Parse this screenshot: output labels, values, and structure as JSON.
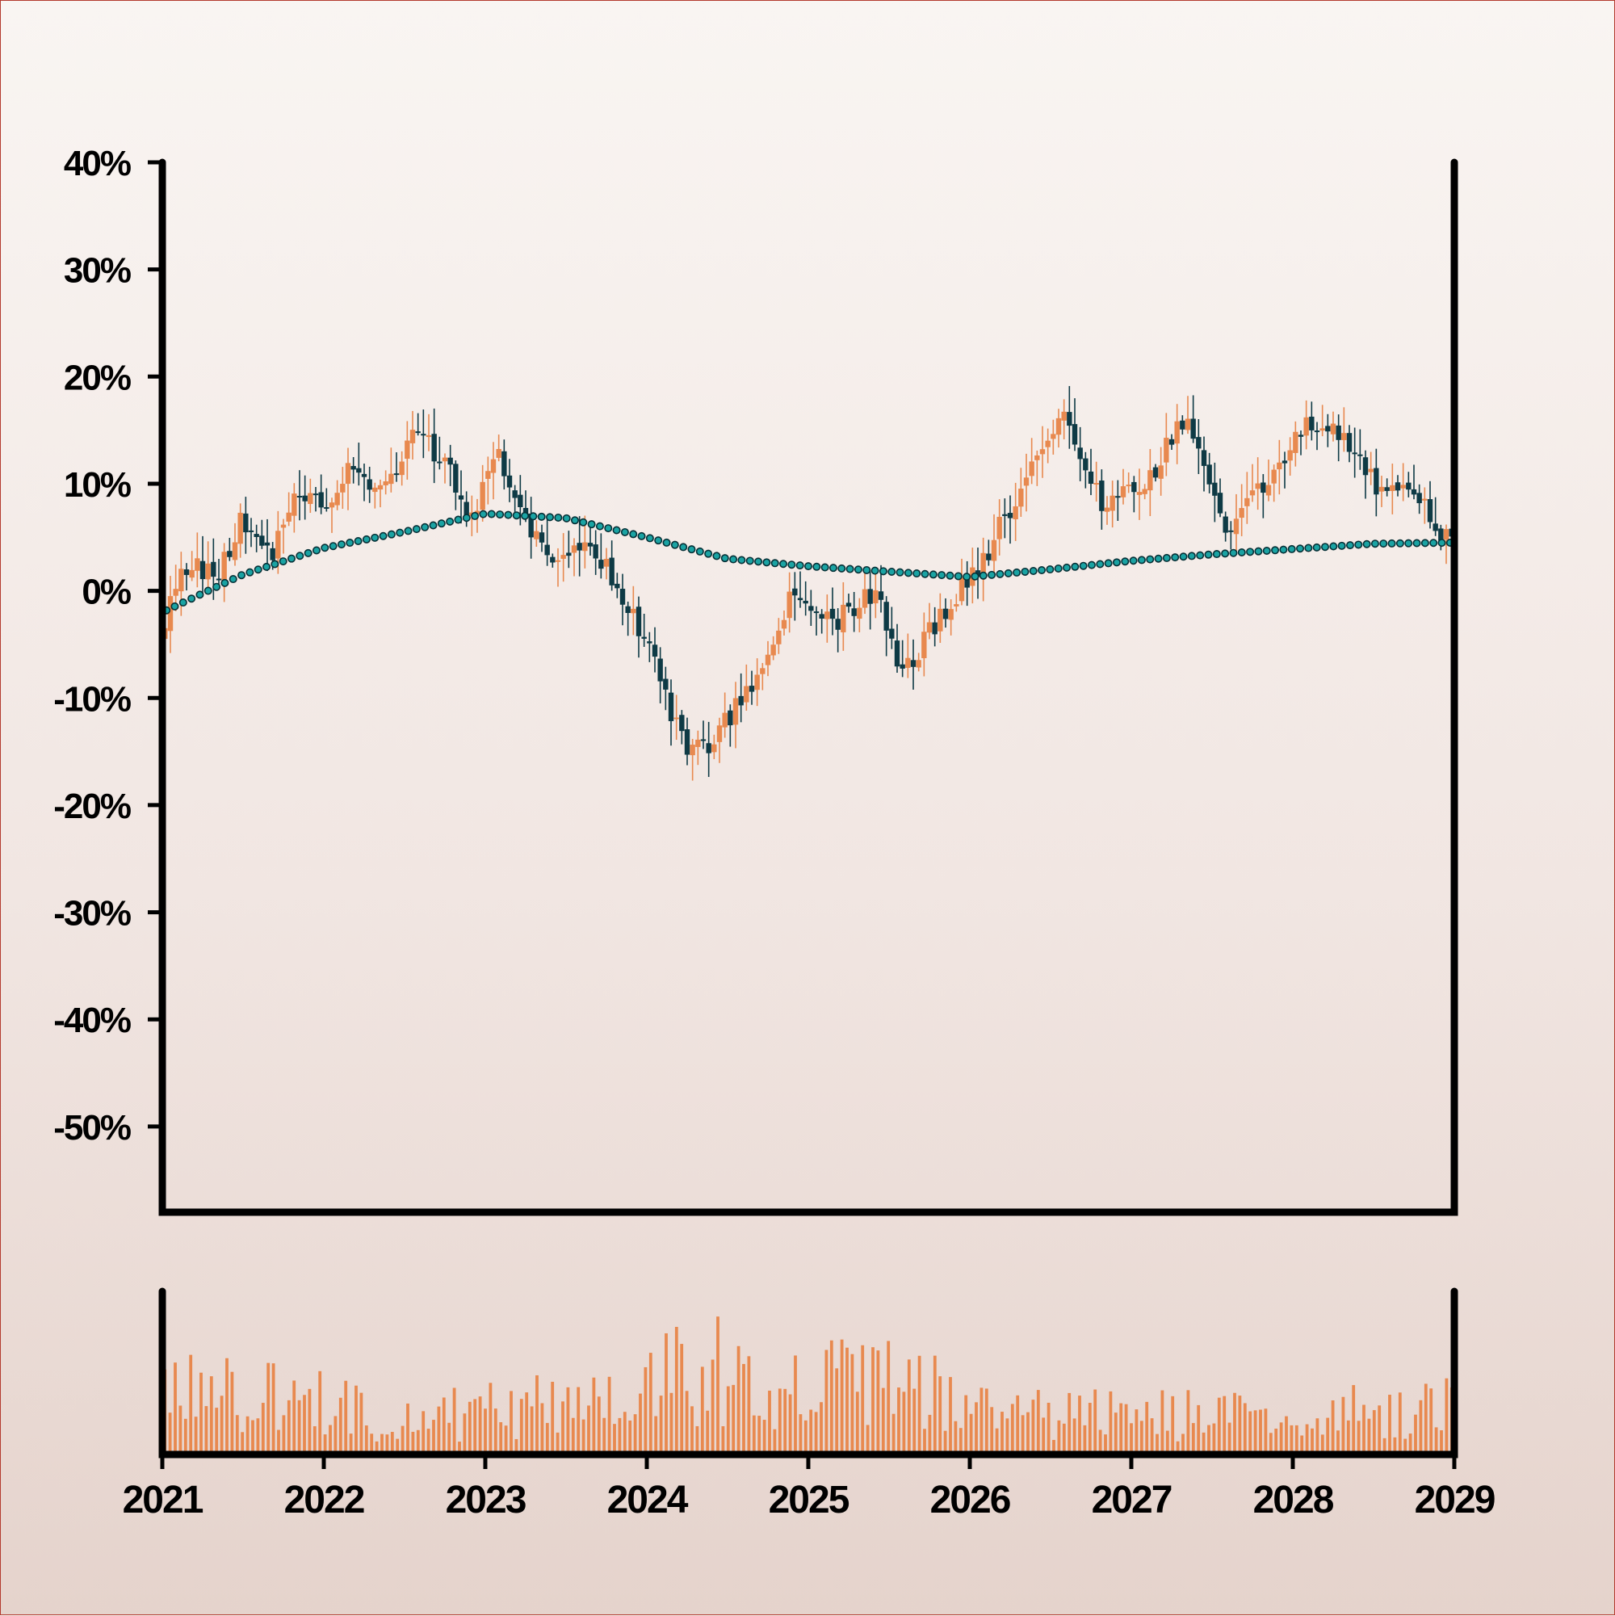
{
  "chart_data": {
    "type": "candlestick",
    "title": "",
    "xlabel": "",
    "ylabel": "",
    "x_axis": {
      "type": "date",
      "range": [
        "2021-01-01",
        "2029-01-01"
      ],
      "tick_labels": [
        "2021",
        "2022",
        "2023",
        "2024",
        "2025",
        "2026",
        "2027",
        "2028",
        "2029"
      ]
    },
    "y_axis": {
      "unit": "%",
      "range": [
        -58,
        40
      ],
      "tick_values": [
        40,
        30,
        20,
        10,
        0,
        -10,
        -20,
        -30,
        -40,
        -50
      ],
      "tick_labels": [
        "40%",
        "30%",
        "20%",
        "10%",
        "0%",
        "-10%",
        "-20%",
        "-30%",
        "-40%",
        "-50%"
      ]
    },
    "grid": false,
    "legend": "none",
    "colors": {
      "up": "#e8894f",
      "down": "#0e3a45",
      "moving_average": "#1aa3a3",
      "volume": "#e8894f",
      "axis": "#000000"
    },
    "series": [
      {
        "type": "candlestick",
        "close_path": [
          {
            "x": "2021-01-01",
            "y": -3
          },
          {
            "x": "2021-03-01",
            "y": 3
          },
          {
            "x": "2021-05-01",
            "y": 1
          },
          {
            "x": "2021-07-01",
            "y": 7
          },
          {
            "x": "2021-09-01",
            "y": 3
          },
          {
            "x": "2021-11-01",
            "y": 10
          },
          {
            "x": "2022-01-01",
            "y": 8
          },
          {
            "x": "2022-03-01",
            "y": 12
          },
          {
            "x": "2022-05-01",
            "y": 9
          },
          {
            "x": "2022-08-01",
            "y": 15
          },
          {
            "x": "2022-10-01",
            "y": 12
          },
          {
            "x": "2022-12-01",
            "y": 7
          },
          {
            "x": "2023-02-01",
            "y": 13
          },
          {
            "x": "2023-04-01",
            "y": 7
          },
          {
            "x": "2023-06-01",
            "y": 2
          },
          {
            "x": "2023-08-01",
            "y": 4
          },
          {
            "x": "2023-10-01",
            "y": 2
          },
          {
            "x": "2024-01-01",
            "y": -5
          },
          {
            "x": "2024-04-01",
            "y": -15
          },
          {
            "x": "2024-06-01",
            "y": -14
          },
          {
            "x": "2024-09-01",
            "y": -8
          },
          {
            "x": "2024-12-01",
            "y": 0
          },
          {
            "x": "2025-03-01",
            "y": -3
          },
          {
            "x": "2025-06-01",
            "y": 0
          },
          {
            "x": "2025-08-01",
            "y": -8
          },
          {
            "x": "2025-11-01",
            "y": -2
          },
          {
            "x": "2026-02-01",
            "y": 3
          },
          {
            "x": "2026-05-01",
            "y": 10
          },
          {
            "x": "2026-08-01",
            "y": 16
          },
          {
            "x": "2026-11-01",
            "y": 8
          },
          {
            "x": "2027-02-01",
            "y": 10
          },
          {
            "x": "2027-05-01",
            "y": 16
          },
          {
            "x": "2027-08-01",
            "y": 6
          },
          {
            "x": "2027-11-01",
            "y": 10
          },
          {
            "x": "2028-02-01",
            "y": 16
          },
          {
            "x": "2028-05-01",
            "y": 14
          },
          {
            "x": "2028-07-01",
            "y": 10
          },
          {
            "x": "2028-10-01",
            "y": 9
          },
          {
            "x": "2028-12-31",
            "y": 4
          }
        ]
      },
      {
        "type": "line-dotted",
        "role": "moving-average",
        "points": [
          {
            "x": "2021-01-01",
            "y": -2
          },
          {
            "x": "2021-07-01",
            "y": 1.5
          },
          {
            "x": "2022-01-01",
            "y": 4
          },
          {
            "x": "2022-07-01",
            "y": 5.5
          },
          {
            "x": "2023-01-01",
            "y": 7.2
          },
          {
            "x": "2023-07-01",
            "y": 6.8
          },
          {
            "x": "2024-01-01",
            "y": 5
          },
          {
            "x": "2024-07-01",
            "y": 3
          },
          {
            "x": "2025-01-01",
            "y": 2.3
          },
          {
            "x": "2025-07-01",
            "y": 1.8
          },
          {
            "x": "2026-01-01",
            "y": 1.3
          },
          {
            "x": "2026-07-01",
            "y": 2
          },
          {
            "x": "2027-01-01",
            "y": 2.8
          },
          {
            "x": "2027-07-01",
            "y": 3.4
          },
          {
            "x": "2028-01-01",
            "y": 3.9
          },
          {
            "x": "2028-07-01",
            "y": 4.4
          },
          {
            "x": "2028-12-31",
            "y": 4.5
          }
        ]
      },
      {
        "type": "volume-bars",
        "relative_levels": [
          {
            "x": "2021-01-01",
            "level": 0.55
          },
          {
            "x": "2021-07-01",
            "level": 0.5
          },
          {
            "x": "2022-01-01",
            "level": 0.4
          },
          {
            "x": "2022-07-01",
            "level": 0.3
          },
          {
            "x": "2023-01-01",
            "level": 0.35
          },
          {
            "x": "2023-07-01",
            "level": 0.4
          },
          {
            "x": "2024-01-01",
            "level": 0.65
          },
          {
            "x": "2024-07-01",
            "level": 0.7
          },
          {
            "x": "2025-01-01",
            "level": 0.55
          },
          {
            "x": "2025-07-01",
            "level": 0.6
          },
          {
            "x": "2026-01-01",
            "level": 0.4
          },
          {
            "x": "2026-07-01",
            "level": 0.3
          },
          {
            "x": "2027-01-01",
            "level": 0.35
          },
          {
            "x": "2027-07-01",
            "level": 0.3
          },
          {
            "x": "2028-01-01",
            "level": 0.3
          },
          {
            "x": "2028-07-01",
            "level": 0.35
          },
          {
            "x": "2028-12-31",
            "level": 0.4
          }
        ]
      }
    ]
  }
}
